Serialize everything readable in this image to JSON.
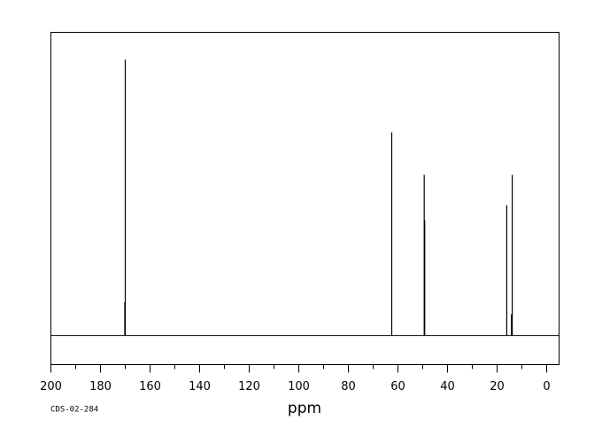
{
  "chart_data": {
    "type": "spectrum",
    "xlabel": "ppm",
    "note": "CDS-02-284",
    "x": [
      170.2,
      170.0,
      62.5,
      49.4,
      49.2,
      16.1,
      14.2,
      13.9
    ],
    "values": [
      11,
      91,
      67,
      53,
      38,
      43,
      7,
      53
    ],
    "color": "#000000",
    "xlim": [
      200,
      -5
    ],
    "ylim": [
      -9.6,
      100
    ],
    "xticks": [
      200,
      180,
      160,
      140,
      120,
      100,
      80,
      60,
      40,
      20,
      0
    ],
    "xminorticks": [
      190,
      170,
      150,
      130,
      110,
      90,
      70,
      50,
      30,
      10
    ]
  }
}
